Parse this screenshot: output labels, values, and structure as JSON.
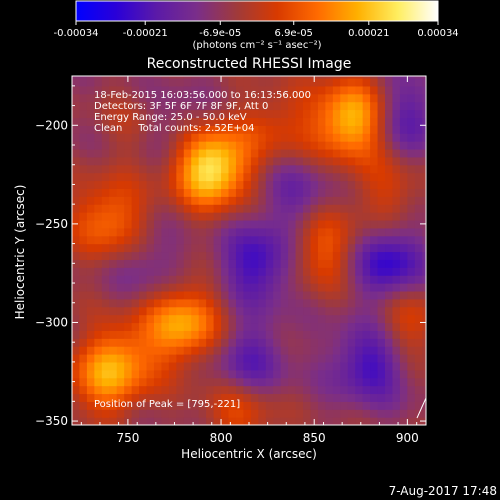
{
  "chart_data": {
    "type": "heatmap",
    "title": "Reconstructed RHESSI Image",
    "xlabel": "Heliocentric X (arcsec)",
    "ylabel": "Heliocentric Y (arcsec)",
    "xlim": [
      720,
      910
    ],
    "ylim": [
      -352,
      -175
    ],
    "x_ticks": [
      750,
      800,
      850,
      900
    ],
    "y_ticks": [
      -200,
      -250,
      -300,
      -350
    ],
    "colorbar": {
      "min": -0.00034,
      "max": 0.00034,
      "tick_values": [
        -0.00034,
        -0.00021,
        -6.9e-05,
        6.9e-05,
        0.00021,
        0.00034
      ],
      "tick_labels": [
        "-0.00034",
        "-0.00021",
        "-6.9e-05",
        "6.9e-05",
        "0.00021",
        "0.00034"
      ],
      "unit_label": "(photons cm⁻² s⁻¹ asec⁻²)",
      "colors": [
        "#0000ff",
        "#2a00d8",
        "#5b1aa8",
        "#7a2e8a",
        "#a03a3a",
        "#d83a00",
        "#ff6a00",
        "#ffb000",
        "#ffee60",
        "#ffffff"
      ]
    },
    "annotations": {
      "time_range": "18-Feb-2015 16:03:56.000 to 16:13:56.000",
      "detectors": "Detectors: 3F 5F 6F 7F 8F 9F, Att 0",
      "energy_range": "Energy Range: 25.0 - 50.0 keV",
      "clean_counts": "Clean     Total counts: 2.52E+04",
      "peak_position": "Position of Peak = [795,-221]"
    },
    "bright_sources": [
      {
        "x": 795,
        "y": -221,
        "value": 0.00034
      },
      {
        "x": 870,
        "y": -197,
        "value": 0.00028
      },
      {
        "x": 780,
        "y": -300,
        "value": 0.00024
      },
      {
        "x": 740,
        "y": -248,
        "value": 0.00018
      },
      {
        "x": 855,
        "y": -262,
        "value": 0.00015
      },
      {
        "x": 748,
        "y": -318,
        "value": 0.00016
      },
      {
        "x": 735,
        "y": -330,
        "value": 0.00014
      },
      {
        "x": 900,
        "y": -300,
        "value": 0.00012
      },
      {
        "x": 810,
        "y": -345,
        "value": 0.00012
      },
      {
        "x": 830,
        "y": -200,
        "value": 0.0001
      },
      {
        "x": 890,
        "y": -235,
        "value": 9e-05
      },
      {
        "x": 760,
        "y": -200,
        "value": 0.0001
      }
    ],
    "dark_regions": [
      {
        "x": 770,
        "y": -200,
        "value": -0.00012
      },
      {
        "x": 820,
        "y": -270,
        "value": -0.00018
      },
      {
        "x": 815,
        "y": -320,
        "value": -0.00014
      },
      {
        "x": 890,
        "y": -270,
        "value": -0.0002
      },
      {
        "x": 880,
        "y": -320,
        "value": -0.00018
      },
      {
        "x": 840,
        "y": -235,
        "value": -0.0001
      },
      {
        "x": 760,
        "y": -270,
        "value": -8e-05
      },
      {
        "x": 900,
        "y": -195,
        "value": -0.00014
      }
    ],
    "grid": false
  },
  "footer": {
    "timestamp": "7-Aug-2017 17:48"
  }
}
